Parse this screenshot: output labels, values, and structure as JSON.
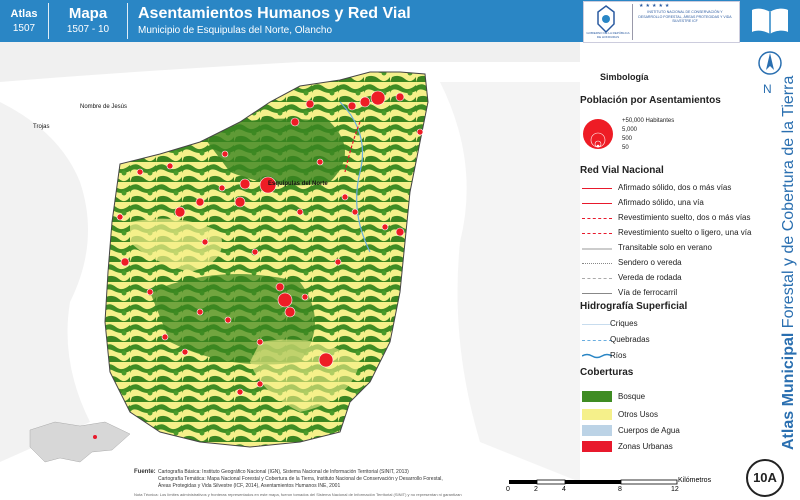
{
  "header": {
    "atlas_label": "Atlas",
    "atlas_code": "1507",
    "map_label": "Mapa",
    "map_code": "1507 - 10",
    "title": "Asentamientos Humanos y Red Vial",
    "subtitle": "Municipio de Esquipulas del Norte, Olancho",
    "logo_left_text": "GOBIERNO DE LA REPÚBLICA DE HONDURAS",
    "logo_right_text": "INSTITUTO NACIONAL DE CONSERVACIÓN Y DESARROLLO FORESTAL, ÁREAS PROTEGIDAS Y VIDA SILVESTRE ICF"
  },
  "side": {
    "vertical_title_bold": "Atlas Municipal",
    "vertical_title_light": " Forestal y de Cobertura de la Tierra",
    "north_label": "N",
    "badge": "10A"
  },
  "map": {
    "place_labels": [
      "Nombre de Jesús",
      "Trojas",
      "Esquipulas del Norte"
    ]
  },
  "legend": {
    "title": "Simbología",
    "population_title": "Población por Asentamientos",
    "population_items": [
      "+50,000 Habitantes",
      "5,000",
      "500",
      "50"
    ],
    "road_title": "Red Vial Nacional",
    "road_items": [
      "Afirmado sólido, dos o más vías",
      "Afirmado sólido, una vía",
      "Revestimiento suelto, dos o más vías",
      "Revestimiento suelto o ligero, una vía",
      "Transitable solo en verano",
      "Sendero o vereda",
      "Vereda de rodada",
      "Vía de ferrocarril"
    ],
    "hydro_title": "Hidrografía Superficial",
    "hydro_items": [
      "Criques",
      "Quebradas",
      "Ríos"
    ],
    "cover_title": "Coberturas",
    "cover_items": [
      {
        "label": "Bosque",
        "color": "#3f8c23"
      },
      {
        "label": "Otros Usos",
        "color": "#f5f08a"
      },
      {
        "label": "Cuerpos de Agua",
        "color": "#bcd3e6"
      },
      {
        "label": "Zonas Urbanas",
        "color": "#e8192c"
      }
    ]
  },
  "footer": {
    "source_label": "Fuente:",
    "source_lines": [
      "Cartografía Básica: Instituto Geográfico Nacional (IGN), Sistema Nacional de Información Territorial (SINIT, 2013)",
      "Cartografía Temática: Mapa Nacional Forestal y Cobertura de la Tierra, Instituto Nacional de Conservación y Desarrollo Forestal,",
      "Áreas Protegidas y Vida Silvestre (ICF, 2014), Asentamientos Humanos INE, 2001"
    ],
    "note": "Nota Técnica: Los límites administrativos y fronteras representados en este mapa, fueron tomados del Sistema Nacional de Información Territorial (SINIT) y no representan ni garantizan"
  },
  "scale": {
    "ticks": [
      "0",
      "2",
      "4",
      "8",
      "12"
    ],
    "tick_values": [
      0,
      2,
      4,
      8,
      12
    ],
    "unit": "Kilómetros"
  },
  "colors": {
    "header_blue": "#2a86c5",
    "forest": "#3f8c23",
    "other_uses": "#f5f08a",
    "urban": "#e8192c",
    "settlement": "#ee1c25",
    "road": "#e8192c"
  }
}
